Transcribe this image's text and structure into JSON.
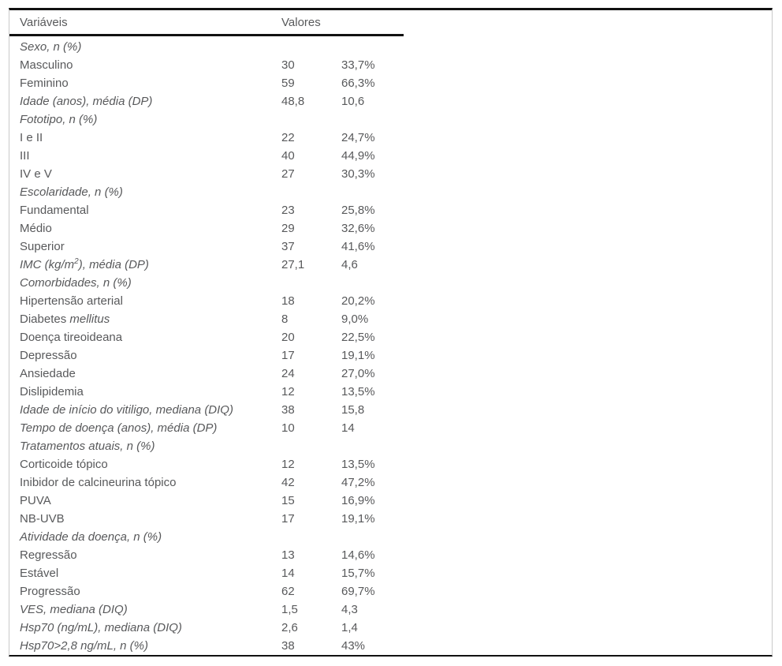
{
  "figure": {
    "colors": {
      "text": "#58595b",
      "rule": "#111111",
      "side_border": "#c9c9c9",
      "background": "#ffffff"
    },
    "header": {
      "variables": "Variáveis",
      "values": "Valores"
    },
    "rows": [
      {
        "label": "Sexo, n (%)",
        "italic": true,
        "n": "",
        "pct": ""
      },
      {
        "label": "Masculino",
        "italic": false,
        "n": "30",
        "pct": "33,7%"
      },
      {
        "label": "Feminino",
        "italic": false,
        "n": "59",
        "pct": "66,3%"
      },
      {
        "label": "Idade (anos), média (DP)",
        "italic": true,
        "n": "48,8",
        "pct": "10,6"
      },
      {
        "label": "Fototipo, n (%)",
        "italic": true,
        "n": "",
        "pct": ""
      },
      {
        "label": "I e II",
        "italic": false,
        "n": "22",
        "pct": "24,7%"
      },
      {
        "label": "III",
        "italic": false,
        "n": "40",
        "pct": "44,9%"
      },
      {
        "label": "IV e V",
        "italic": false,
        "n": "27",
        "pct": "30,3%"
      },
      {
        "label": "Escolaridade, n (%)",
        "italic": true,
        "n": "",
        "pct": ""
      },
      {
        "label": "Fundamental",
        "italic": false,
        "n": "23",
        "pct": "25,8%"
      },
      {
        "label": "Médio",
        "italic": false,
        "n": "29",
        "pct": "32,6%"
      },
      {
        "label": "Superior",
        "italic": false,
        "n": "37",
        "pct": "41,6%"
      },
      {
        "parts": [
          {
            "text": "IMC (kg/m",
            "italic": true
          },
          {
            "text": "2",
            "italic": true,
            "sup": true
          },
          {
            "text": "), média (DP)",
            "italic": true
          }
        ],
        "italic": true,
        "n": "27,1",
        "pct": "4,6"
      },
      {
        "label": "Comorbidades, n (%)",
        "italic": true,
        "n": "",
        "pct": ""
      },
      {
        "label": "Hipertensão arterial",
        "italic": false,
        "n": "18",
        "pct": "20,2%"
      },
      {
        "parts": [
          {
            "text": "Diabetes ",
            "italic": false
          },
          {
            "text": "mellitus",
            "italic": true
          }
        ],
        "italic": false,
        "n": "8",
        "pct": "9,0%"
      },
      {
        "label": "Doença tireoideana",
        "italic": false,
        "n": "20",
        "pct": "22,5%"
      },
      {
        "label": "Depressão",
        "italic": false,
        "n": "17",
        "pct": "19,1%"
      },
      {
        "label": "Ansiedade",
        "italic": false,
        "n": "24",
        "pct": "27,0%"
      },
      {
        "label": "Dislipidemia",
        "italic": false,
        "n": "12",
        "pct": "13,5%"
      },
      {
        "label": "Idade de início do vitiligo, mediana (DIQ)",
        "italic": true,
        "n": "38",
        "pct": "15,8"
      },
      {
        "label": "Tempo de doença (anos), média (DP)",
        "italic": true,
        "n": "10",
        "pct": "14"
      },
      {
        "label": "Tratamentos atuais, n (%)",
        "italic": true,
        "n": "",
        "pct": ""
      },
      {
        "label": "Corticoide tópico",
        "italic": false,
        "n": "12",
        "pct": "13,5%"
      },
      {
        "label": "Inibidor de calcineurina tópico",
        "italic": false,
        "n": "42",
        "pct": "47,2%"
      },
      {
        "label": "PUVA",
        "italic": false,
        "n": "15",
        "pct": "16,9%"
      },
      {
        "label": "NB-UVB",
        "italic": false,
        "n": "17",
        "pct": "19,1%"
      },
      {
        "label": "Atividade da doença, n (%)",
        "italic": true,
        "n": "",
        "pct": ""
      },
      {
        "label": "Regressão",
        "italic": false,
        "n": "13",
        "pct": "14,6%"
      },
      {
        "label": "Estável",
        "italic": false,
        "n": "14",
        "pct": "15,7%"
      },
      {
        "label": "Progressão",
        "italic": false,
        "n": "62",
        "pct": "69,7%"
      },
      {
        "label": "VES, mediana (DIQ)",
        "italic": true,
        "n": "1,5",
        "pct": "4,3"
      },
      {
        "label": "Hsp70 (ng/mL), mediana (DIQ)",
        "italic": true,
        "n": "2,6",
        "pct": "1,4"
      },
      {
        "label": "Hsp70>2,8 ng/mL, n (%)",
        "italic": true,
        "n": "38",
        "pct": "43%"
      }
    ]
  }
}
